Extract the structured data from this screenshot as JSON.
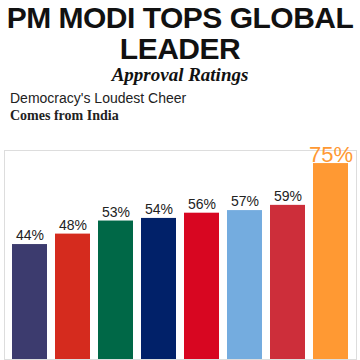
{
  "chart_data": {
    "type": "bar",
    "title": "PM MODI TOPS GLOBAL LEADER",
    "subtitle": "Approval Ratings",
    "annotations": [
      "Democracy's Loudest Cheer",
      "Comes from India"
    ],
    "categories": [
      null,
      null,
      null,
      null,
      null,
      null,
      null,
      null
    ],
    "values": [
      44,
      48,
      53,
      54,
      56,
      57,
      59,
      75
    ],
    "value_labels": [
      "44%",
      "48%",
      "53%",
      "54%",
      "56%",
      "57%",
      "59%",
      "75%"
    ],
    "colors": [
      "#3c3b6e",
      "#d52b1e",
      "#006847",
      "#012169",
      "#d80621",
      "#74acdf",
      "#cd2e3a",
      "#ff9933"
    ],
    "ylim": [
      0,
      80
    ],
    "yticks": [],
    "data_labels": true,
    "tick_labels": false,
    "grid": false
  }
}
